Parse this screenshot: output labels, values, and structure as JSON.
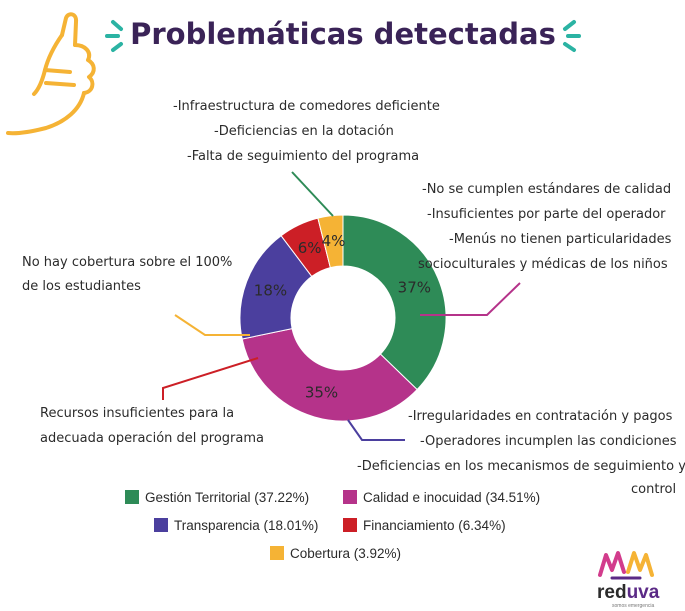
{
  "title": "Problemáticas detectadas",
  "chart_data": {
    "type": "pie",
    "variant": "donut",
    "slices": [
      {
        "label": "Gestión Territorial (37.22%)",
        "value": 37.22,
        "display": "37%",
        "color": "#2e8b57",
        "annotation": [
          "-Infraestructura de comedores deficiente",
          "-Deficiencias en la dotación",
          "-Falta de seguimiento del programa"
        ]
      },
      {
        "label": "Calidad e inocuidad (34.51%)",
        "value": 34.51,
        "display": "35%",
        "color": "#b5338a",
        "annotation": [
          "-No se cumplen estándares de calidad",
          "-Insuficientes por parte del operador",
          "-Menús no tienen particularidades",
          "socioculturales y médicas de los niños"
        ]
      },
      {
        "label": "Transparencia (18.01%)",
        "value": 18.01,
        "display": "18%",
        "color": "#4b3f9e",
        "annotation": [
          "-Irregularidades en contratación y pagos",
          "-Operadores incumplen las condiciones",
          "-Deficiencias en los mecanismos de seguimiento y",
          "control"
        ]
      },
      {
        "label": "Financiamiento (6.34%)",
        "value": 6.34,
        "display": "6%",
        "color": "#cc1f26",
        "annotation": [
          "Recursos insuficientes para la",
          "adecuada operación del programa"
        ]
      },
      {
        "label": "Cobertura (3.92%)",
        "value": 3.92,
        "display": "4%",
        "color": "#f5b335",
        "annotation": [
          "No hay cobertura sobre el 100%",
          "de los estudiantes"
        ]
      }
    ],
    "legend": "bottom"
  },
  "logo": {
    "name": "reduva",
    "red": "red",
    "uva": "uva",
    "tagline": "somos emergencia"
  },
  "colors": {
    "title": "#3a2357",
    "accent_teal": "#2bb3a3",
    "hand": "#f5b335",
    "logo_red": "#2b2b2b",
    "logo_uva": "#5b2a86"
  }
}
